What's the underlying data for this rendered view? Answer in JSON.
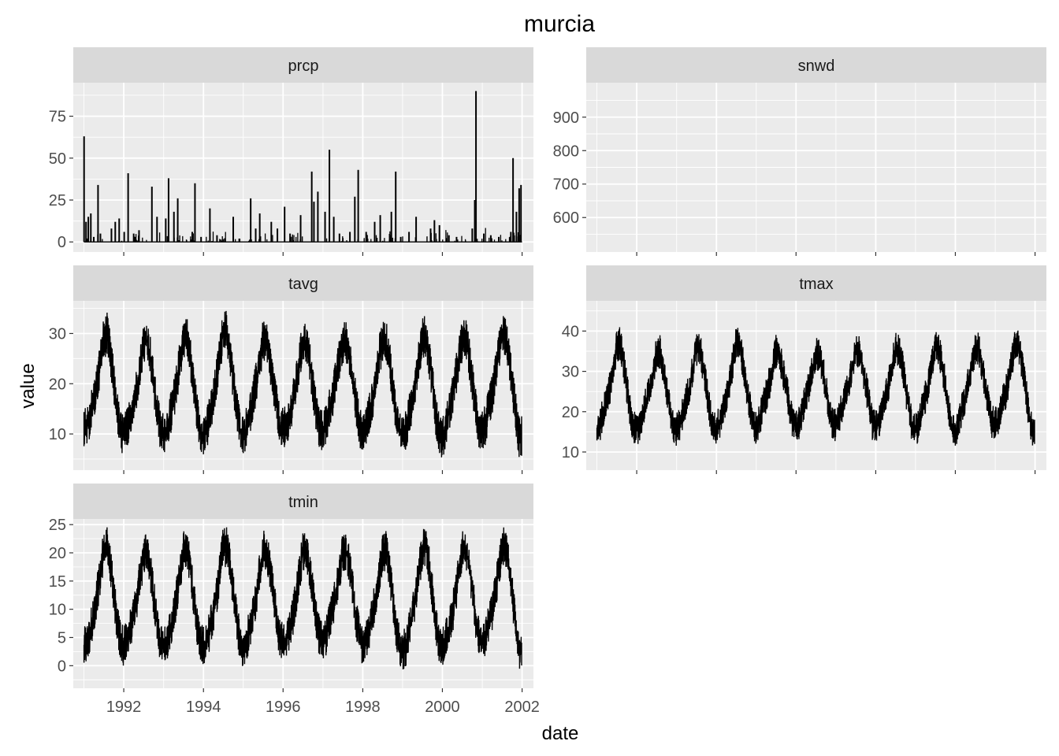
{
  "chart_data": {
    "type": "line",
    "title": "murcia",
    "xlabel": "date",
    "ylabel": "value",
    "x_range": [
      "1990-09-25",
      "2002-04-15"
    ],
    "x_ticks": [
      "1992",
      "1994",
      "1996",
      "1998",
      "2000",
      "2002"
    ],
    "colors": {
      "line": "#000000",
      "panel_bg": "#ebebeb",
      "strip_bg": "#d9d9d9",
      "grid": "#ffffff",
      "tick_text": "#4d4d4d"
    },
    "grid": true,
    "facet_scales": "free_y",
    "panels": [
      {
        "name": "prcp",
        "style": "spikes",
        "ylim": [
          -6,
          95
        ],
        "y_ticks": [
          0,
          25,
          50,
          75
        ],
        "x": [
          "1991-01-02",
          "1991-01-20",
          "1991-02-10",
          "1991-03-05",
          "1991-04-01",
          "1991-05-10",
          "1991-06-01",
          "1991-09-10",
          "1991-10-15",
          "1991-11-20",
          "1992-01-05",
          "1992-02-10",
          "1992-04-01",
          "1992-05-20",
          "1992-09-15",
          "1992-11-01",
          "1993-01-20",
          "1993-02-15",
          "1993-04-05",
          "1993-05-10",
          "1993-09-20",
          "1993-10-15",
          "1993-12-10",
          "1994-03-01",
          "1994-05-05",
          "1994-10-01",
          "1994-11-25",
          "1995-03-10",
          "1995-04-25",
          "1995-06-01",
          "1995-09-15",
          "1995-11-10",
          "1996-01-15",
          "1996-03-05",
          "1996-06-10",
          "1996-09-20",
          "1996-10-10",
          "1996-11-15",
          "1997-01-20",
          "1997-03-01",
          "1997-04-10",
          "1997-06-01",
          "1997-09-05",
          "1997-10-20",
          "1997-11-20",
          "1998-02-01",
          "1998-04-20",
          "1998-06-10",
          "1998-09-20",
          "1998-10-30",
          "1998-12-15",
          "1999-03-01",
          "1999-05-05",
          "1999-09-15",
          "1999-10-20",
          "1999-12-05",
          "2000-03-01",
          "2000-05-10",
          "2000-10-01",
          "2000-10-24",
          "2000-11-04",
          "2001-01-15",
          "2001-03-20",
          "2001-06-01",
          "2001-09-20",
          "2001-10-10",
          "2001-11-10",
          "2001-12-05",
          "2001-12-22"
        ],
        "y": [
          63,
          12,
          15,
          17,
          3,
          34,
          5,
          8,
          12,
          14,
          6,
          41,
          5,
          7,
          33,
          15,
          14,
          38,
          18,
          26,
          6,
          35,
          3,
          20,
          4,
          15,
          2,
          26,
          8,
          17,
          12,
          8,
          21,
          5,
          16,
          42,
          24,
          30,
          18,
          55,
          15,
          5,
          6,
          27,
          43,
          6,
          12,
          16,
          18,
          42,
          3,
          6,
          15,
          8,
          13,
          10,
          4,
          3,
          8,
          25,
          90,
          5,
          4,
          3,
          6,
          50,
          18,
          32,
          34
        ]
      },
      {
        "name": "snwd",
        "style": "none",
        "ylim": [
          497,
          1003
        ],
        "y_ticks": [
          600,
          700,
          800,
          900
        ],
        "x": [],
        "y": []
      },
      {
        "name": "tavg",
        "style": "seasonal",
        "ylim": [
          2.8,
          36.5
        ],
        "y_ticks": [
          10,
          20,
          30
        ],
        "x": [
          "1991-01-01",
          "1991-02-01",
          "1991-03-01",
          "1991-04-01",
          "1991-05-01",
          "1991-06-01",
          "1991-07-01",
          "1991-08-01",
          "1991-09-01",
          "1991-10-01",
          "1991-11-01",
          "1991-12-01",
          "1992-01-01",
          "1992-02-01",
          "1992-03-01",
          "1992-04-01",
          "1992-05-01",
          "1992-06-01",
          "1992-07-01",
          "1992-08-01",
          "1992-09-01",
          "1992-10-01",
          "1992-11-01",
          "1992-12-01",
          "1993-01-01",
          "1993-02-01",
          "1993-03-01",
          "1993-04-01",
          "1993-05-01",
          "1993-06-01",
          "1993-07-01",
          "1993-08-01",
          "1993-09-01",
          "1993-10-01",
          "1993-11-01",
          "1993-12-01",
          "1994-01-01",
          "1994-02-01",
          "1994-03-01",
          "1994-04-01",
          "1994-05-01",
          "1994-06-01",
          "1994-07-01",
          "1994-08-01",
          "1994-09-01",
          "1994-10-01",
          "1994-11-01",
          "1994-12-01",
          "1995-01-01",
          "1995-02-01",
          "1995-03-01",
          "1995-04-01",
          "1995-05-01",
          "1995-06-01",
          "1995-07-01",
          "1995-08-01",
          "1995-09-01",
          "1995-10-01",
          "1995-11-01",
          "1995-12-01",
          "1996-01-01",
          "1996-02-01",
          "1996-03-01",
          "1996-04-01",
          "1996-05-01",
          "1996-06-01",
          "1996-07-01",
          "1996-08-01",
          "1996-09-01",
          "1996-10-01",
          "1996-11-01",
          "1996-12-01",
          "1997-01-01",
          "1997-02-01",
          "1997-03-01",
          "1997-04-01",
          "1997-05-01",
          "1997-06-01",
          "1997-07-01",
          "1997-08-01",
          "1997-09-01",
          "1997-10-01",
          "1997-11-01",
          "1997-12-01",
          "1998-01-01",
          "1998-02-01",
          "1998-03-01",
          "1998-04-01",
          "1998-05-01",
          "1998-06-01",
          "1998-07-01",
          "1998-08-01",
          "1998-09-01",
          "1998-10-01",
          "1998-11-01",
          "1998-12-01",
          "1999-01-01",
          "1999-02-01",
          "1999-03-01",
          "1999-04-01",
          "1999-05-01",
          "1999-06-01",
          "1999-07-01",
          "1999-08-01",
          "1999-09-01",
          "1999-10-01",
          "1999-11-01",
          "1999-12-01",
          "2000-01-01",
          "2000-02-01",
          "2000-03-01",
          "2000-04-01",
          "2000-05-01",
          "2000-06-01",
          "2000-07-01",
          "2000-08-01",
          "2000-09-01",
          "2000-10-01",
          "2000-11-01",
          "2000-12-01",
          "2001-01-01",
          "2001-02-01",
          "2001-03-01",
          "2001-04-01",
          "2001-05-01",
          "2001-06-01",
          "2001-07-01",
          "2001-08-01",
          "2001-09-01",
          "2001-10-01",
          "2001-11-01",
          "2001-12-01"
        ],
        "y": [
          11,
          11.5,
          14,
          16.5,
          20,
          24.5,
          29,
          30,
          26,
          20.5,
          14.5,
          10.5,
          10,
          11,
          13.5,
          16,
          19.5,
          23.5,
          28,
          28.5,
          25.5,
          20,
          14.5,
          11,
          10,
          11,
          13.5,
          16.5,
          20,
          25,
          29,
          29.5,
          25.5,
          20,
          14.5,
          10.5,
          10,
          11,
          14,
          16.5,
          21,
          25.5,
          30.5,
          30.5,
          26,
          20.5,
          15.5,
          11,
          9.5,
          11.5,
          14,
          17,
          20.5,
          24.5,
          28.5,
          28,
          24.5,
          20.5,
          16,
          11.5,
          11,
          11.5,
          13.5,
          16.5,
          20,
          24.5,
          28.5,
          28,
          24.5,
          19.5,
          14.5,
          11,
          10.5,
          12.5,
          15,
          17.5,
          21,
          25,
          28,
          28.5,
          25.5,
          21,
          16,
          11.5,
          10,
          11.5,
          14,
          16.5,
          20.5,
          25.5,
          28.5,
          28.5,
          25.5,
          19.5,
          14,
          10.5,
          9.5,
          10.5,
          13.5,
          17,
          21,
          25.5,
          29,
          29.5,
          25.5,
          20.5,
          14,
          10,
          9,
          11.5,
          14,
          17,
          21,
          25.5,
          28.5,
          29,
          25.5,
          20.5,
          15.5,
          11.5,
          11,
          12,
          15,
          17.5,
          21.5,
          26,
          29.5,
          29.5,
          25.5,
          20.5,
          14.5,
          9.5
        ]
      },
      {
        "name": "tmax",
        "style": "seasonal",
        "ylim": [
          5.5,
          47.5
        ],
        "y_ticks": [
          10,
          20,
          30,
          40
        ],
        "x": [
          "1991-01-01",
          "1991-02-01",
          "1991-03-01",
          "1991-04-01",
          "1991-05-01",
          "1991-06-01",
          "1991-07-01",
          "1991-08-01",
          "1991-09-01",
          "1991-10-01",
          "1991-11-01",
          "1991-12-01",
          "1992-01-01",
          "1992-02-01",
          "1992-03-01",
          "1992-04-01",
          "1992-05-01",
          "1992-06-01",
          "1992-07-01",
          "1992-08-01",
          "1992-09-01",
          "1992-10-01",
          "1992-11-01",
          "1992-12-01",
          "1993-01-01",
          "1993-02-01",
          "1993-03-01",
          "1993-04-01",
          "1993-05-01",
          "1993-06-01",
          "1993-07-01",
          "1993-08-01",
          "1993-09-01",
          "1993-10-01",
          "1993-11-01",
          "1993-12-01",
          "1994-01-01",
          "1994-02-01",
          "1994-03-01",
          "1994-04-01",
          "1994-05-01",
          "1994-06-01",
          "1994-07-01",
          "1994-08-01",
          "1994-09-01",
          "1994-10-01",
          "1994-11-01",
          "1994-12-01",
          "1995-01-01",
          "1995-02-01",
          "1995-03-01",
          "1995-04-01",
          "1995-05-01",
          "1995-06-01",
          "1995-07-01",
          "1995-08-01",
          "1995-09-01",
          "1995-10-01",
          "1995-11-01",
          "1995-12-01",
          "1996-01-01",
          "1996-02-01",
          "1996-03-01",
          "1996-04-01",
          "1996-05-01",
          "1996-06-01",
          "1996-07-01",
          "1996-08-01",
          "1996-09-01",
          "1996-10-01",
          "1996-11-01",
          "1996-12-01",
          "1997-01-01",
          "1997-02-01",
          "1997-03-01",
          "1997-04-01",
          "1997-05-01",
          "1997-06-01",
          "1997-07-01",
          "1997-08-01",
          "1997-09-01",
          "1997-10-01",
          "1997-11-01",
          "1997-12-01",
          "1998-01-01",
          "1998-02-01",
          "1998-03-01",
          "1998-04-01",
          "1998-05-01",
          "1998-06-01",
          "1998-07-01",
          "1998-08-01",
          "1998-09-01",
          "1998-10-01",
          "1998-11-01",
          "1998-12-01",
          "1999-01-01",
          "1999-02-01",
          "1999-03-01",
          "1999-04-01",
          "1999-05-01",
          "1999-06-01",
          "1999-07-01",
          "1999-08-01",
          "1999-09-01",
          "1999-10-01",
          "1999-11-01",
          "1999-12-01",
          "2000-01-01",
          "2000-02-01",
          "2000-03-01",
          "2000-04-01",
          "2000-05-01",
          "2000-06-01",
          "2000-07-01",
          "2000-08-01",
          "2000-09-01",
          "2000-10-01",
          "2000-11-01",
          "2000-12-01",
          "2001-01-01",
          "2001-02-01",
          "2001-03-01",
          "2001-04-01",
          "2001-05-01",
          "2001-06-01",
          "2001-07-01",
          "2001-08-01",
          "2001-09-01",
          "2001-10-01",
          "2001-11-01",
          "2001-12-01"
        ],
        "y": [
          15.5,
          17,
          20,
          22.5,
          26,
          31,
          36,
          37,
          32.5,
          26,
          20.5,
          16,
          15.5,
          17,
          20,
          22.5,
          25.5,
          30,
          34.5,
          35,
          31,
          25.5,
          20,
          16.5,
          15.5,
          17,
          20,
          23,
          26.5,
          31,
          35.5,
          36,
          31,
          26,
          20,
          16.5,
          16,
          17.5,
          21,
          23.5,
          27,
          32,
          37.5,
          37.5,
          32,
          26.5,
          21.5,
          17,
          16,
          18,
          21,
          24,
          27,
          31,
          35,
          34.5,
          30.5,
          26.5,
          21.5,
          17,
          16.5,
          17.5,
          20.5,
          23,
          26.5,
          30.5,
          34.5,
          34,
          31,
          25.5,
          21,
          17,
          16.5,
          18.5,
          21.5,
          24.5,
          27.5,
          31.5,
          34.5,
          35,
          31.5,
          27,
          22,
          17,
          16,
          17.5,
          21,
          23.5,
          27,
          31.5,
          35.5,
          35.5,
          32,
          26,
          20.5,
          16.5,
          15.5,
          17,
          20.5,
          23.5,
          27,
          31.5,
          35.5,
          36,
          31.5,
          26.5,
          20,
          16,
          15,
          17.5,
          20.5,
          23.5,
          27.5,
          32,
          35.5,
          36,
          31.5,
          26,
          21.5,
          17.5,
          17,
          18.5,
          21.5,
          24,
          27.5,
          32,
          36.5,
          36.5,
          32,
          26.5,
          20.5,
          15.5
        ]
      },
      {
        "name": "tmin",
        "style": "seasonal",
        "ylim": [
          -4,
          26
        ],
        "y_ticks": [
          0,
          5,
          10,
          15,
          20,
          25
        ],
        "x": [
          "1991-01-01",
          "1991-02-01",
          "1991-03-01",
          "1991-04-01",
          "1991-05-01",
          "1991-06-01",
          "1991-07-01",
          "1991-08-01",
          "1991-09-01",
          "1991-10-01",
          "1991-11-01",
          "1991-12-01",
          "1992-01-01",
          "1992-02-01",
          "1992-03-01",
          "1992-04-01",
          "1992-05-01",
          "1992-06-01",
          "1992-07-01",
          "1992-08-01",
          "1992-09-01",
          "1992-10-01",
          "1992-11-01",
          "1992-12-01",
          "1993-01-01",
          "1993-02-01",
          "1993-03-01",
          "1993-04-01",
          "1993-05-01",
          "1993-06-01",
          "1993-07-01",
          "1993-08-01",
          "1993-09-01",
          "1993-10-01",
          "1993-11-01",
          "1993-12-01",
          "1994-01-01",
          "1994-02-01",
          "1994-03-01",
          "1994-04-01",
          "1994-05-01",
          "1994-06-01",
          "1994-07-01",
          "1994-08-01",
          "1994-09-01",
          "1994-10-01",
          "1994-11-01",
          "1994-12-01",
          "1995-01-01",
          "1995-02-01",
          "1995-03-01",
          "1995-04-01",
          "1995-05-01",
          "1995-06-01",
          "1995-07-01",
          "1995-08-01",
          "1995-09-01",
          "1995-10-01",
          "1995-11-01",
          "1995-12-01",
          "1996-01-01",
          "1996-02-01",
          "1996-03-01",
          "1996-04-01",
          "1996-05-01",
          "1996-06-01",
          "1996-07-01",
          "1996-08-01",
          "1996-09-01",
          "1996-10-01",
          "1996-11-01",
          "1996-12-01",
          "1997-01-01",
          "1997-02-01",
          "1997-03-01",
          "1997-04-01",
          "1997-05-01",
          "1997-06-01",
          "1997-07-01",
          "1997-08-01",
          "1997-09-01",
          "1997-10-01",
          "1997-11-01",
          "1997-12-01",
          "1998-01-01",
          "1998-02-01",
          "1998-03-01",
          "1998-04-01",
          "1998-05-01",
          "1998-06-01",
          "1998-07-01",
          "1998-08-01",
          "1998-09-01",
          "1998-10-01",
          "1998-11-01",
          "1998-12-01",
          "1999-01-01",
          "1999-02-01",
          "1999-03-01",
          "1999-04-01",
          "1999-05-01",
          "1999-06-01",
          "1999-07-01",
          "1999-08-01",
          "1999-09-01",
          "1999-10-01",
          "1999-11-01",
          "1999-12-01",
          "2000-01-01",
          "2000-02-01",
          "2000-03-01",
          "2000-04-01",
          "2000-05-01",
          "2000-06-01",
          "2000-07-01",
          "2000-08-01",
          "2000-09-01",
          "2000-10-01",
          "2000-11-01",
          "2000-12-01",
          "2001-01-01",
          "2001-02-01",
          "2001-03-01",
          "2001-04-01",
          "2001-05-01",
          "2001-06-01",
          "2001-07-01",
          "2001-08-01",
          "2001-09-01",
          "2001-10-01",
          "2001-11-01",
          "2001-12-01"
        ],
        "y": [
          3.5,
          4.5,
          6.5,
          9,
          12.5,
          16.5,
          20.5,
          21,
          18,
          13,
          7.5,
          4.5,
          3.5,
          4.5,
          6.5,
          9,
          12,
          16,
          19.5,
          20,
          17,
          12.5,
          7.5,
          4,
          3,
          4,
          6.5,
          9,
          12.5,
          16.5,
          20.5,
          21,
          17.5,
          12.5,
          7.5,
          4,
          3.5,
          4.5,
          6.5,
          9,
          12.5,
          17,
          21,
          21,
          18,
          13,
          8,
          4.5,
          3,
          4.5,
          6.5,
          9.5,
          12.5,
          16.5,
          20.5,
          20.5,
          17.5,
          13,
          8.5,
          5,
          4,
          4.5,
          6.5,
          9,
          12.5,
          16.5,
          20.5,
          20,
          17,
          12.5,
          8,
          5,
          4.5,
          5.5,
          7.5,
          10,
          13,
          16.5,
          20,
          20.5,
          18,
          13.5,
          8.5,
          5,
          3.5,
          4.5,
          6.5,
          9,
          12.5,
          16.5,
          20,
          20.5,
          17.5,
          12.5,
          7,
          4,
          2.5,
          3.5,
          6,
          9,
          12.5,
          17,
          20.5,
          21,
          18,
          13,
          7.5,
          4,
          3,
          4.5,
          6.5,
          9,
          12.5,
          17,
          20.5,
          21,
          18,
          13.5,
          8.5,
          5,
          4,
          5,
          7.5,
          9.5,
          13,
          17,
          21,
          21.5,
          18,
          13,
          7,
          3
        ]
      }
    ]
  }
}
